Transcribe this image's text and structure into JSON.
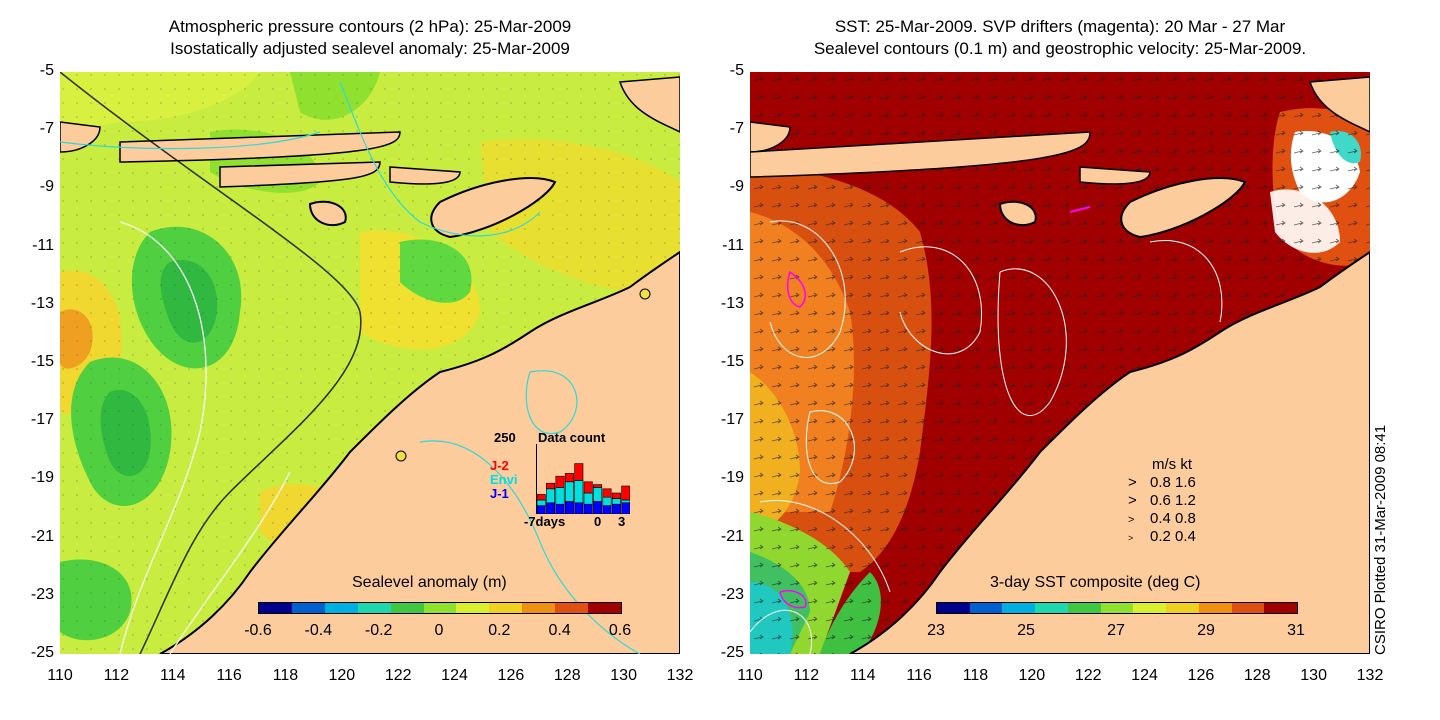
{
  "left_panel": {
    "title_line1": "Atmospheric pressure contours (2 hPa): 25-Mar-2009",
    "title_line2": "Isostatically adjusted sealevel anomaly: 25-Mar-2009",
    "colorbar": {
      "title": "Sealevel anomaly (m)",
      "labels": [
        "-0.6",
        "-0.4",
        "-0.2",
        "0",
        "0.2",
        "0.4",
        "0.6"
      ],
      "colors": [
        "#00008b",
        "#0060d0",
        "#00b0e0",
        "#20d8b0",
        "#40c840",
        "#90e030",
        "#d8f030",
        "#f0d020",
        "#f09010",
        "#e05010",
        "#a00000"
      ]
    },
    "data_count": {
      "title": "Data count",
      "max_label": "250",
      "missions": [
        "J-2",
        "Envi",
        "J-1"
      ],
      "mission_colors": [
        "#ff0000",
        "#00e0e0",
        "#0000ff"
      ],
      "axis_labels": [
        "-7days",
        "0",
        "3"
      ],
      "chart_data": {
        "type": "bar",
        "categories": [
          "-7",
          "-6",
          "-5",
          "-4",
          "-3",
          "-2",
          "-1",
          "0",
          "1",
          "2"
        ],
        "series": [
          {
            "name": "J-1",
            "values": [
              30,
              40,
              35,
              45,
              40,
              35,
              45,
              30,
              35,
              40
            ]
          },
          {
            "name": "Envi",
            "values": [
              20,
              50,
              60,
              70,
              80,
              40,
              50,
              30,
              20,
              10
            ]
          },
          {
            "name": "J-2",
            "values": [
              20,
              20,
              40,
              30,
              60,
              40,
              10,
              30,
              20,
              50
            ]
          }
        ],
        "ylim": [
          0,
          250
        ]
      }
    }
  },
  "right_panel": {
    "title_line1": "SST: 25-Mar-2009. SVP drifters (magenta): 20 Mar - 27 Mar",
    "title_line2": "Sealevel contours (0.1 m) and geostrophic velocity: 25-Mar-2009.",
    "colorbar": {
      "title": "3-day SST composite (deg C)",
      "labels": [
        "23",
        "25",
        "27",
        "29",
        "31"
      ],
      "colors": [
        "#00008b",
        "#0060d0",
        "#00b0e0",
        "#20d8b0",
        "#40c840",
        "#90e030",
        "#d8f030",
        "#f0d020",
        "#f09010",
        "#e05010",
        "#a00000"
      ]
    },
    "velocity_legend": {
      "header": "m/s  kt",
      "rows": [
        "0.8  1.6",
        "0.6  1.2",
        "0.4  0.8",
        "0.2  0.4"
      ]
    }
  },
  "axes": {
    "y_ticks": [
      "-5",
      "-7",
      "-9",
      "-11",
      "-13",
      "-15",
      "-17",
      "-19",
      "-21",
      "-23",
      "-25"
    ],
    "x_ticks": [
      "110",
      "112",
      "114",
      "116",
      "118",
      "120",
      "122",
      "124",
      "126",
      "128",
      "130",
      "132"
    ]
  },
  "credit": "CSIRO Plotted 31-Mar-2009 08:41",
  "colors": {
    "land": "#fccc9c",
    "sst_warm": "#a00000",
    "sla_base": "#c8f050"
  }
}
